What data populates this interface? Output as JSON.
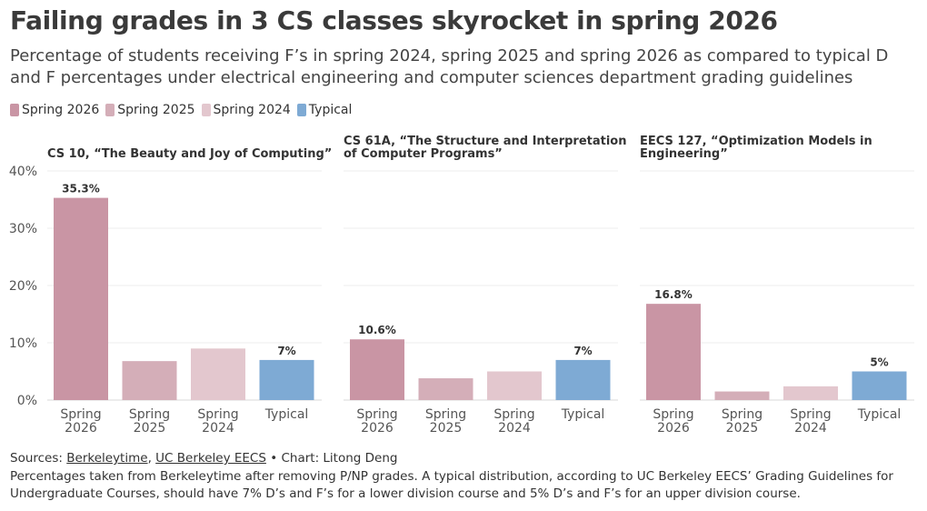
{
  "header": {
    "title": "Failing grades in 3 CS classes skyrocket in spring 2026",
    "subtitle": "Percentage of students receiving F’s in spring 2024, spring 2025 and spring 2026 as compared to typical D and F percentages under electrical engineering and computer sciences department grading guidelines"
  },
  "legend": [
    {
      "label": "Spring 2026",
      "color": "#c995a4"
    },
    {
      "label": "Spring 2025",
      "color": "#d4aeb8"
    },
    {
      "label": "Spring 2024",
      "color": "#e3c7ce"
    },
    {
      "label": "Typical",
      "color": "#7eaad4"
    }
  ],
  "chart_data": [
    {
      "type": "bar",
      "title": "CS 10, “The Beauty and Joy of Computing”",
      "categories": [
        "Spring 2026",
        "Spring 2025",
        "Spring 2024",
        "Typical"
      ],
      "values": [
        35.3,
        6.8,
        9.0,
        7
      ],
      "data_labels": [
        "35.3%",
        "",
        "",
        "7%"
      ],
      "ylim": [
        0,
        40
      ],
      "yticks": [
        "0%",
        "10%",
        "20%",
        "30%",
        "40%"
      ],
      "grid": true
    },
    {
      "type": "bar",
      "title": "CS 61A, “The Structure and Interpretation of Computer Programs”",
      "categories": [
        "Spring 2026",
        "Spring 2025",
        "Spring 2024",
        "Typical"
      ],
      "values": [
        10.6,
        3.8,
        5.0,
        7
      ],
      "data_labels": [
        "10.6%",
        "",
        "",
        "7%"
      ],
      "ylim": [
        0,
        40
      ],
      "grid": true
    },
    {
      "type": "bar",
      "title": "EECS 127, “Optimization Models in Engineering”",
      "categories": [
        "Spring 2026",
        "Spring 2025",
        "Spring 2024",
        "Typical"
      ],
      "values": [
        16.8,
        1.5,
        2.4,
        5
      ],
      "data_labels": [
        "16.8%",
        "",
        "",
        "5%"
      ],
      "ylim": [
        0,
        40
      ],
      "grid": true
    }
  ],
  "footer": {
    "sources_prefix": "Sources: ",
    "source1": "Berkeleytime",
    "separator": ", ",
    "source2": "UC Berkeley EECS",
    "credit": " • Chart: Litong Deng",
    "note": "Percentages taken from Berkeleytime after removing P/NP grades. A typical distribution, according to UC Berkeley EECS’ Grading Guidelines for Undergraduate Courses, should have 7% D’s and F’s for a lower division course and 5% D’s and F’s for an upper division course."
  }
}
